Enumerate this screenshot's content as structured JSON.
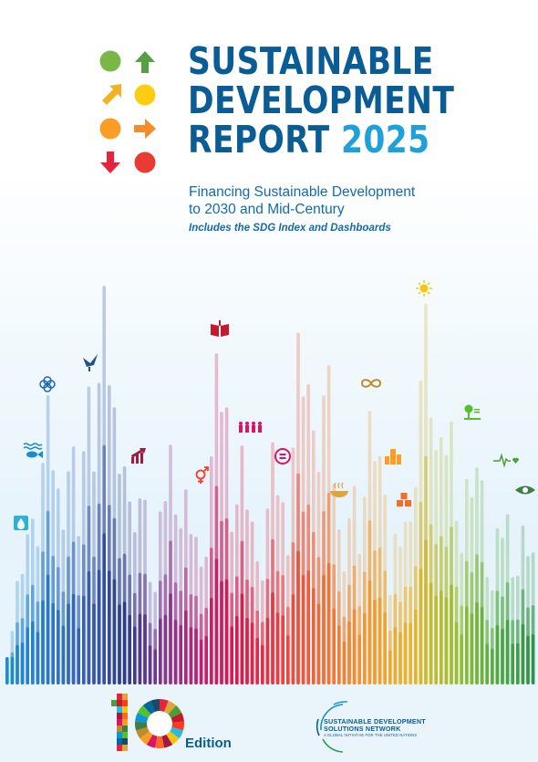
{
  "title": {
    "line1": "SUSTAINABLE",
    "line2": "DEVELOPMENT",
    "line3_word": "REPORT",
    "year": "2025"
  },
  "subtitle": {
    "line1": "Financing Sustainable Development",
    "line2": "to 2030 and Mid-Century"
  },
  "tagline": "Includes the SDG Index and Dashboards",
  "edition": {
    "number": "10",
    "label": "Edition"
  },
  "publisher": {
    "line1": "SUSTAINABLE DEVELOPMENT",
    "line2": "SOLUTIONS NETWORK",
    "line3": "A GLOBAL INITIATIVE FOR THE UNITED NATIONS"
  },
  "colors": {
    "title": "#0a5c94",
    "year": "#1ea0d8",
    "logo": [
      "#7ab648",
      "#56a044",
      "#f0b323",
      "#fccd12",
      "#f99d26",
      "#f58b2b",
      "#e5243b",
      "#e83b31"
    ]
  },
  "icons": [
    "water-drop-icon",
    "fish-icon",
    "flower-icon",
    "dove-icon",
    "growth-chart-icon",
    "gender-icon",
    "book-icon",
    "people-icon",
    "equality-icon",
    "infinity-icon",
    "bowl-icon",
    "city-icon",
    "partnership-cubes-icon",
    "sun-icon",
    "tree-icon",
    "heartbeat-icon",
    "eye-leaf-icon"
  ]
}
